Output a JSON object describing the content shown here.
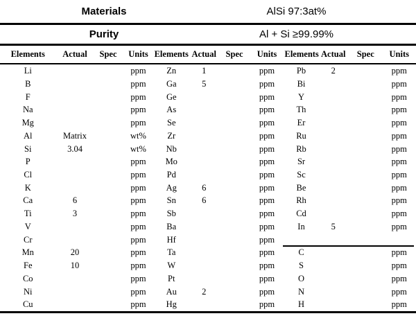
{
  "header": {
    "rows": [
      {
        "label": "Materials",
        "value": "AlSi 97:3at%"
      },
      {
        "label": "Purity",
        "value": "Al + Si ≥99.99%"
      }
    ]
  },
  "table": {
    "column_headers": [
      "Elements",
      "Actual",
      "Spec",
      "Units"
    ],
    "row_count": 19,
    "groups": [
      {
        "name": "group-1",
        "rows": [
          [
            "Li",
            "",
            "",
            "ppm"
          ],
          [
            "B",
            "",
            "",
            "ppm"
          ],
          [
            "F",
            "",
            "",
            "ppm"
          ],
          [
            "Na",
            "",
            "",
            "ppm"
          ],
          [
            "Mg",
            "",
            "",
            "ppm"
          ],
          [
            "Al",
            "Matrix",
            "",
            "wt%"
          ],
          [
            "Si",
            "3.04",
            "",
            "wt%"
          ],
          [
            "P",
            "",
            "",
            "ppm"
          ],
          [
            "Cl",
            "",
            "",
            "ppm"
          ],
          [
            "K",
            "",
            "",
            "ppm"
          ],
          [
            "Ca",
            "6",
            "",
            "ppm"
          ],
          [
            "Ti",
            "3",
            "",
            "ppm"
          ],
          [
            "V",
            "",
            "",
            "ppm"
          ],
          [
            "Cr",
            "",
            "",
            "ppm"
          ],
          [
            "Mn",
            "20",
            "",
            "ppm"
          ],
          [
            "Fe",
            "10",
            "",
            "ppm"
          ],
          [
            "Co",
            "",
            "",
            "ppm"
          ],
          [
            "Ni",
            "",
            "",
            "ppm"
          ],
          [
            "Cu",
            "",
            "",
            "ppm"
          ]
        ]
      },
      {
        "name": "group-2",
        "rows": [
          [
            "Zn",
            "1",
            "",
            "ppm"
          ],
          [
            "Ga",
            "5",
            "",
            "ppm"
          ],
          [
            "Ge",
            "",
            "",
            "ppm"
          ],
          [
            "As",
            "",
            "",
            "ppm"
          ],
          [
            "Se",
            "",
            "",
            "ppm"
          ],
          [
            "Zr",
            "",
            "",
            "ppm"
          ],
          [
            "Nb",
            "",
            "",
            "ppm"
          ],
          [
            "Mo",
            "",
            "",
            "ppm"
          ],
          [
            "Pd",
            "",
            "",
            "ppm"
          ],
          [
            "Ag",
            "6",
            "",
            "ppm"
          ],
          [
            "Sn",
            "6",
            "",
            "ppm"
          ],
          [
            "Sb",
            "",
            "",
            "ppm"
          ],
          [
            "Ba",
            "",
            "",
            "ppm"
          ],
          [
            "Hf",
            "",
            "",
            "ppm"
          ],
          [
            "Ta",
            "",
            "",
            "ppm"
          ],
          [
            "W",
            "",
            "",
            "ppm"
          ],
          [
            "Pt",
            "",
            "",
            "ppm"
          ],
          [
            "Au",
            "2",
            "",
            "ppm"
          ],
          [
            "Hg",
            "",
            "",
            "ppm"
          ]
        ]
      },
      {
        "name": "group-3",
        "divider_after_row": 14,
        "rows": [
          [
            "Pb",
            "2",
            "",
            "ppm"
          ],
          [
            "Bi",
            "",
            "",
            "ppm"
          ],
          [
            "Y",
            "",
            "",
            "ppm"
          ],
          [
            "Th",
            "",
            "",
            "ppm"
          ],
          [
            "Er",
            "",
            "",
            "ppm"
          ],
          [
            "Ru",
            "",
            "",
            "ppm"
          ],
          [
            "Rb",
            "",
            "",
            "ppm"
          ],
          [
            "Sr",
            "",
            "",
            "ppm"
          ],
          [
            "Sc",
            "",
            "",
            "ppm"
          ],
          [
            "Be",
            "",
            "",
            "ppm"
          ],
          [
            "Rh",
            "",
            "",
            "ppm"
          ],
          [
            "Cd",
            "",
            "",
            "ppm"
          ],
          [
            "In",
            "5",
            "",
            "ppm"
          ],
          [
            "",
            "",
            "",
            ""
          ],
          [
            "C",
            "",
            "",
            "ppm"
          ],
          [
            "S",
            "",
            "",
            "ppm"
          ],
          [
            "O",
            "",
            "",
            "ppm"
          ],
          [
            "N",
            "",
            "",
            "ppm"
          ],
          [
            "H",
            "",
            "",
            "ppm"
          ]
        ]
      }
    ]
  }
}
